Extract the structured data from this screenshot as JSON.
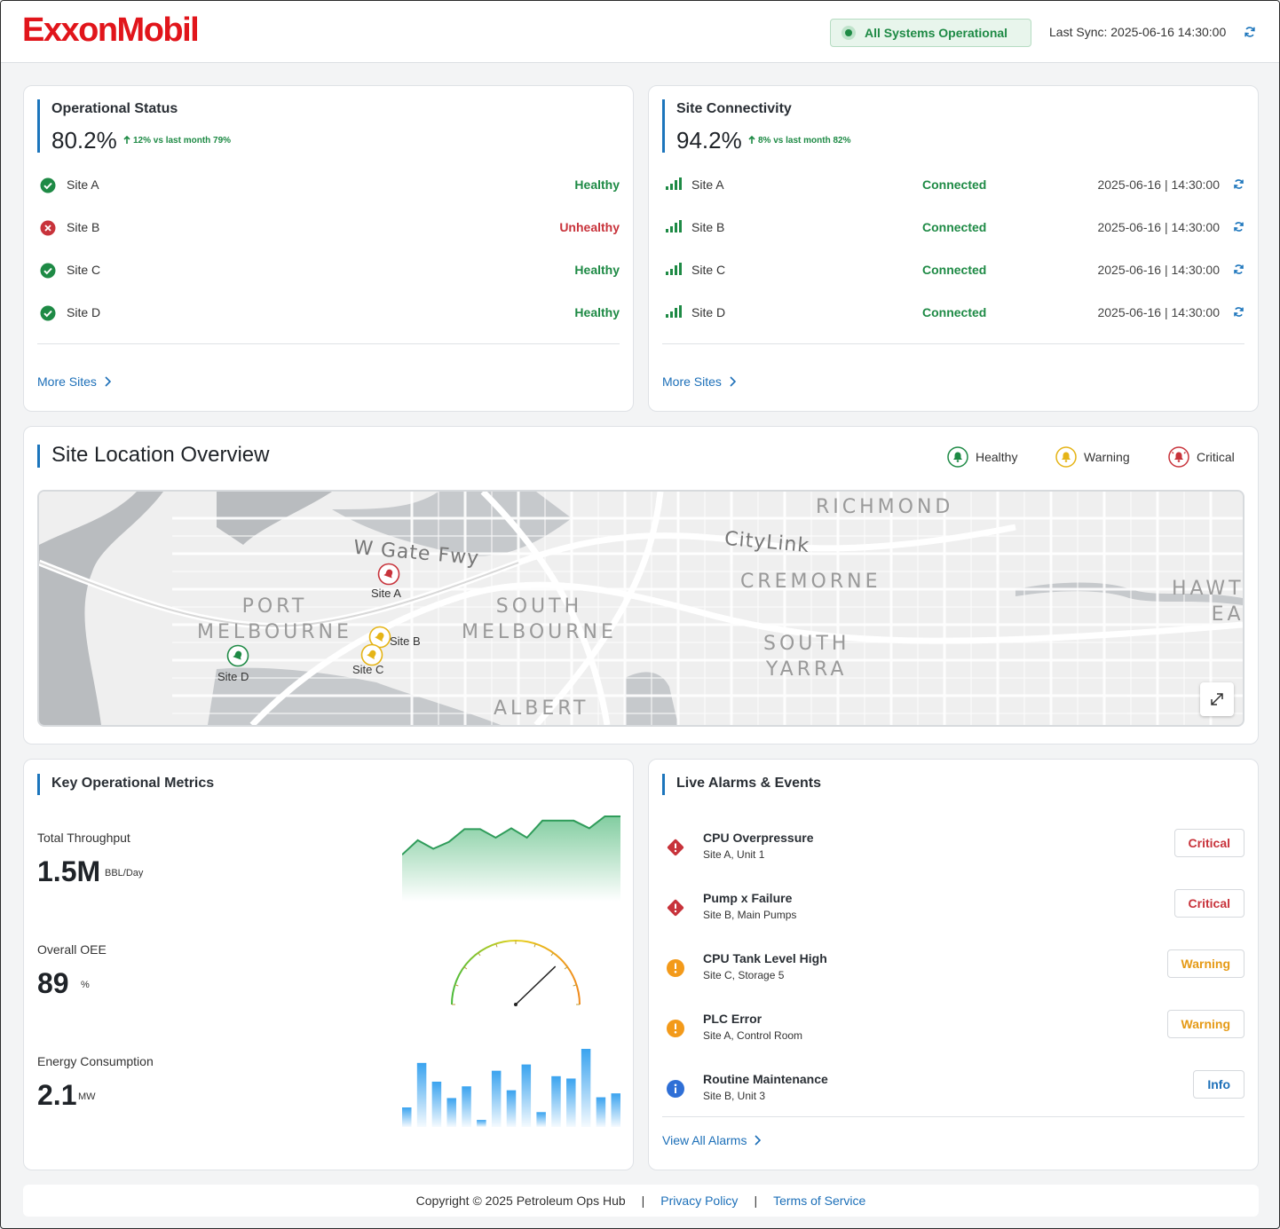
{
  "header": {
    "logo": "ExxonMobil",
    "system_status": "All Systems Operational",
    "last_sync": "Last Sync: 2025-06-16 14:30:00"
  },
  "operational_status": {
    "title": "Operational Status",
    "value": "80.2%",
    "delta": "12% vs last month 79%",
    "sites": [
      {
        "name": "Site A",
        "status": "Healthy"
      },
      {
        "name": "Site B",
        "status": "Unhealthy"
      },
      {
        "name": "Site C",
        "status": "Healthy"
      },
      {
        "name": "Site D",
        "status": "Healthy"
      }
    ],
    "more_link": "More Sites"
  },
  "site_connectivity": {
    "title": "Site Connectivity",
    "value": "94.2%",
    "delta": "8% vs last month 82%",
    "sites": [
      {
        "name": "Site A",
        "status": "Connected",
        "timestamp": "2025-06-16 | 14:30:00"
      },
      {
        "name": "Site B",
        "status": "Connected",
        "timestamp": "2025-06-16 | 14:30:00"
      },
      {
        "name": "Site C",
        "status": "Connected",
        "timestamp": "2025-06-16 | 14:30:00"
      },
      {
        "name": "Site D",
        "status": "Connected",
        "timestamp": "2025-06-16 | 14:30:00"
      }
    ],
    "more_link": "More Sites"
  },
  "site_location": {
    "title": "Site Location Overview",
    "legend": [
      "Healthy",
      "Warning",
      "Critical"
    ],
    "map_labels": {
      "richmond": "RICHMOND",
      "citylink": "CityLink",
      "cremorne": "CREMORNE",
      "hawthorn": "HAWT\nEA",
      "port_melbourne": "PORT\nMELBOURNE",
      "south_melbourne": "SOUTH\nMELBOURNE",
      "south_yarra": "SOUTH\nYARRA",
      "albert": "ALBERT",
      "w_gate_fwy": "W Gate Fwy"
    },
    "pins": [
      {
        "label": "Site A",
        "status": "Critical"
      },
      {
        "label": "Site B",
        "status": "Warning"
      },
      {
        "label": "Site C",
        "status": "Warning"
      },
      {
        "label": "Site D",
        "status": "Healthy"
      }
    ]
  },
  "key_metrics": {
    "title": "Key Operational Metrics",
    "throughput": {
      "label": "Total Throughput",
      "value": "1.5M",
      "unit": "BBL/Day",
      "trend": [
        0.55,
        0.72,
        0.62,
        0.7,
        0.85,
        0.85,
        0.75,
        0.86,
        0.75,
        0.95,
        0.95,
        0.95,
        0.86,
        1.0,
        1.0
      ]
    },
    "oee": {
      "label": "Overall OEE",
      "value": "89",
      "unit": "%",
      "gauge_fraction": 0.89
    },
    "energy": {
      "label": "Energy Consumption",
      "value": "2.1",
      "unit": "MW",
      "bars": [
        0.25,
        0.82,
        0.58,
        0.37,
        0.52,
        0.09,
        0.72,
        0.47,
        0.8,
        0.19,
        0.65,
        0.62,
        1.0,
        0.38,
        0.43
      ]
    }
  },
  "alarms": {
    "title": "Live Alarms & Events",
    "items": [
      {
        "title": "CPU Overpressure",
        "sub": "Site A, Unit 1",
        "level": "Critical"
      },
      {
        "title": "Pump x Failure",
        "sub": "Site B, Main Pumps",
        "level": "Critical"
      },
      {
        "title": "CPU Tank Level High",
        "sub": "Site C, Storage 5",
        "level": "Warning"
      },
      {
        "title": "PLC Error",
        "sub": "Site A, Control Room",
        "level": "Warning"
      },
      {
        "title": "Routine Maintenance",
        "sub": "Site B, Unit 3",
        "level": "Info"
      }
    ],
    "view_all": "View All Alarms"
  },
  "footer": {
    "copyright": "Copyright © 2025 Petroleum Ops Hub",
    "separator": "|",
    "privacy": "Privacy Policy",
    "terms": "Terms of Service"
  },
  "colors": {
    "brand": "#e1151b",
    "accent": "#1c75bc",
    "healthy": "#1e8a45",
    "warning": "#e59a16",
    "critical": "#c8333b",
    "info": "#2f6fd6"
  }
}
